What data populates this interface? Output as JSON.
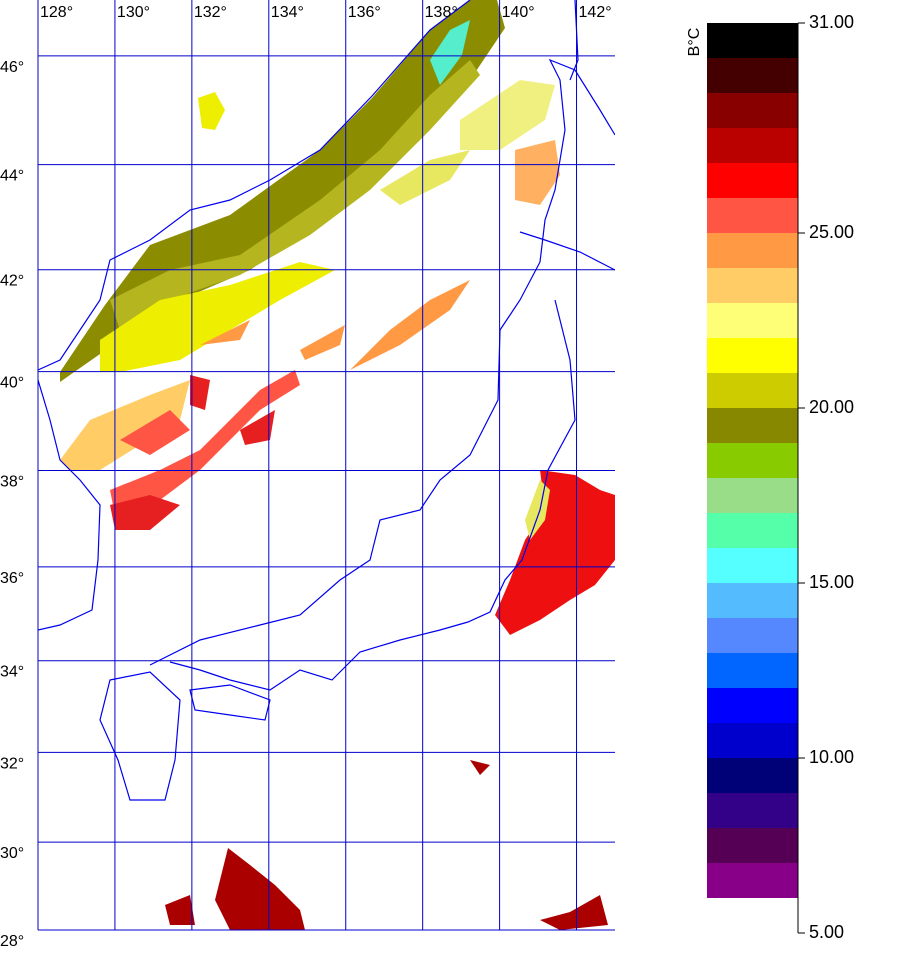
{
  "map": {
    "projection": "mercator",
    "lon_lim": [
      128,
      143
    ],
    "lat_lim": [
      28,
      47
    ],
    "grid_color": "#0000cc",
    "lon_ticks": [
      {
        "value": 128,
        "label": "128°"
      },
      {
        "value": 130,
        "label": "130°"
      },
      {
        "value": 132,
        "label": "132°"
      },
      {
        "value": 134,
        "label": "134°"
      },
      {
        "value": 136,
        "label": "136°"
      },
      {
        "value": 138,
        "label": "138°"
      },
      {
        "value": 140,
        "label": "140°"
      },
      {
        "value": 142,
        "label": "142°"
      }
    ],
    "lat_ticks": [
      {
        "value": 46,
        "label": "46°"
      },
      {
        "value": 44,
        "label": "44°"
      },
      {
        "value": 42,
        "label": "42°"
      },
      {
        "value": 40,
        "label": "40°"
      },
      {
        "value": 38,
        "label": "38°"
      },
      {
        "value": 36,
        "label": "36°"
      },
      {
        "value": 34,
        "label": "34°"
      },
      {
        "value": 32,
        "label": "32°"
      },
      {
        "value": 30,
        "label": "30°"
      },
      {
        "value": 28,
        "label": "28°"
      }
    ]
  },
  "colorbar": {
    "unit": "B°C",
    "lim": [
      5,
      31
    ],
    "ticks": [
      {
        "value": 31,
        "label": "31.00"
      },
      {
        "value": 25,
        "label": "25.00"
      },
      {
        "value": 20,
        "label": "20.00"
      },
      {
        "value": 15,
        "label": "15.00"
      },
      {
        "value": 10,
        "label": "10.00"
      },
      {
        "value": 5,
        "label": "5.00"
      }
    ],
    "levels": [
      6,
      7,
      8,
      9,
      10,
      11,
      12,
      13,
      14,
      15,
      16,
      17,
      18,
      19,
      20,
      21,
      22,
      23,
      24,
      25,
      26,
      27,
      28,
      29,
      30,
      31
    ],
    "colors": [
      "#880088",
      "#550055",
      "#330088",
      "#000077",
      "#0000cc",
      "#0000ff",
      "#0066ff",
      "#5588ff",
      "#55bbff",
      "#55ffff",
      "#55ffaa",
      "#99dd88",
      "#88cc00",
      "#888800",
      "#cccc00",
      "#ffff00",
      "#ffff77",
      "#ffcc66",
      "#ff9944",
      "#ff5544",
      "#ff0000",
      "#bb0000",
      "#880000",
      "#440000",
      "#000000"
    ]
  }
}
